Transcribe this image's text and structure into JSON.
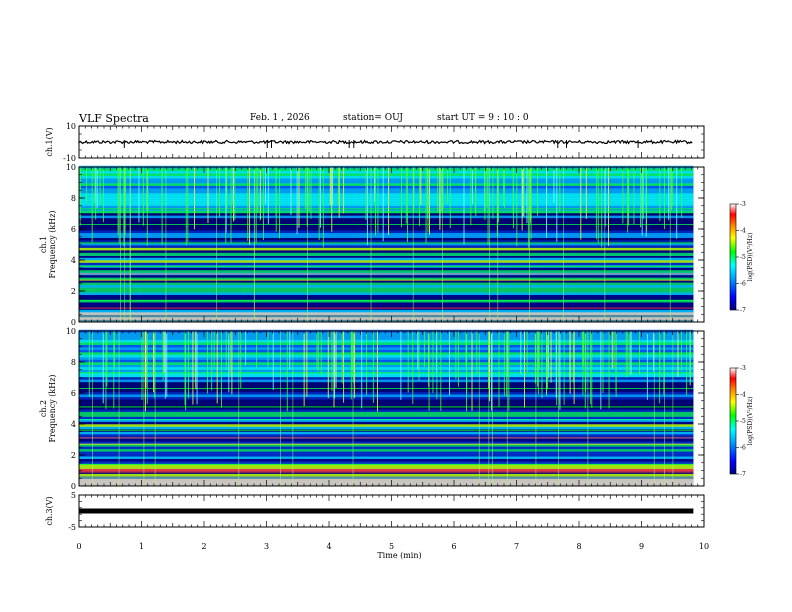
{
  "header": {
    "title": "VLF Spectra",
    "date": "Feb. 1 , 2026",
    "station": "station= OUJ",
    "start": "start  UT =   9 : 10 : 0"
  },
  "chart_data": [
    {
      "type": "line",
      "name": "ch1-waveform",
      "ylabel": "ch.1(V)",
      "ylim": [
        -10,
        10
      ],
      "yticks": [
        "10",
        "-10"
      ],
      "xlim": [
        0,
        10
      ],
      "level": 0,
      "x_end": 9.83
    },
    {
      "type": "heatmap",
      "name": "ch1-spectrogram",
      "ylabel": "ch.1\nFrequency  (kHz)",
      "ylim": [
        0,
        10
      ],
      "yticks": [
        "0",
        "2",
        "4",
        "6",
        "8",
        "10"
      ],
      "xlim": [
        0,
        10
      ],
      "x_end": 9.83,
      "colorbar": {
        "label": "log(PSD)(V²/Hz)",
        "range": [
          -7,
          -3
        ],
        "ticks": [
          "-3",
          "-4",
          "-5",
          "-6",
          "-7"
        ]
      }
    },
    {
      "type": "heatmap",
      "name": "ch2-spectrogram",
      "ylabel": "ch.2\nFrequency  (kHz)",
      "ylim": [
        0,
        10
      ],
      "yticks": [
        "0",
        "2",
        "4",
        "6",
        "8",
        "10"
      ],
      "xlim": [
        0,
        10
      ],
      "x_end": 9.83,
      "colorbar": {
        "label": "log(PSD)(V²/Hz)",
        "range": [
          -7,
          -3
        ],
        "ticks": [
          "-3",
          "-4",
          "-5",
          "-6",
          "-7"
        ]
      }
    },
    {
      "type": "line",
      "name": "ch3-waveform",
      "ylabel": "ch.3(V)",
      "ylim": [
        -5,
        5
      ],
      "yticks": [
        "5",
        "-5"
      ],
      "xlim": [
        0,
        10
      ],
      "level": 0,
      "x_end": 9.83
    }
  ],
  "xaxis": {
    "label": "Time  (min)",
    "ticks": [
      "0",
      "1",
      "2",
      "3",
      "4",
      "5",
      "6",
      "7",
      "8",
      "9",
      "10"
    ]
  }
}
